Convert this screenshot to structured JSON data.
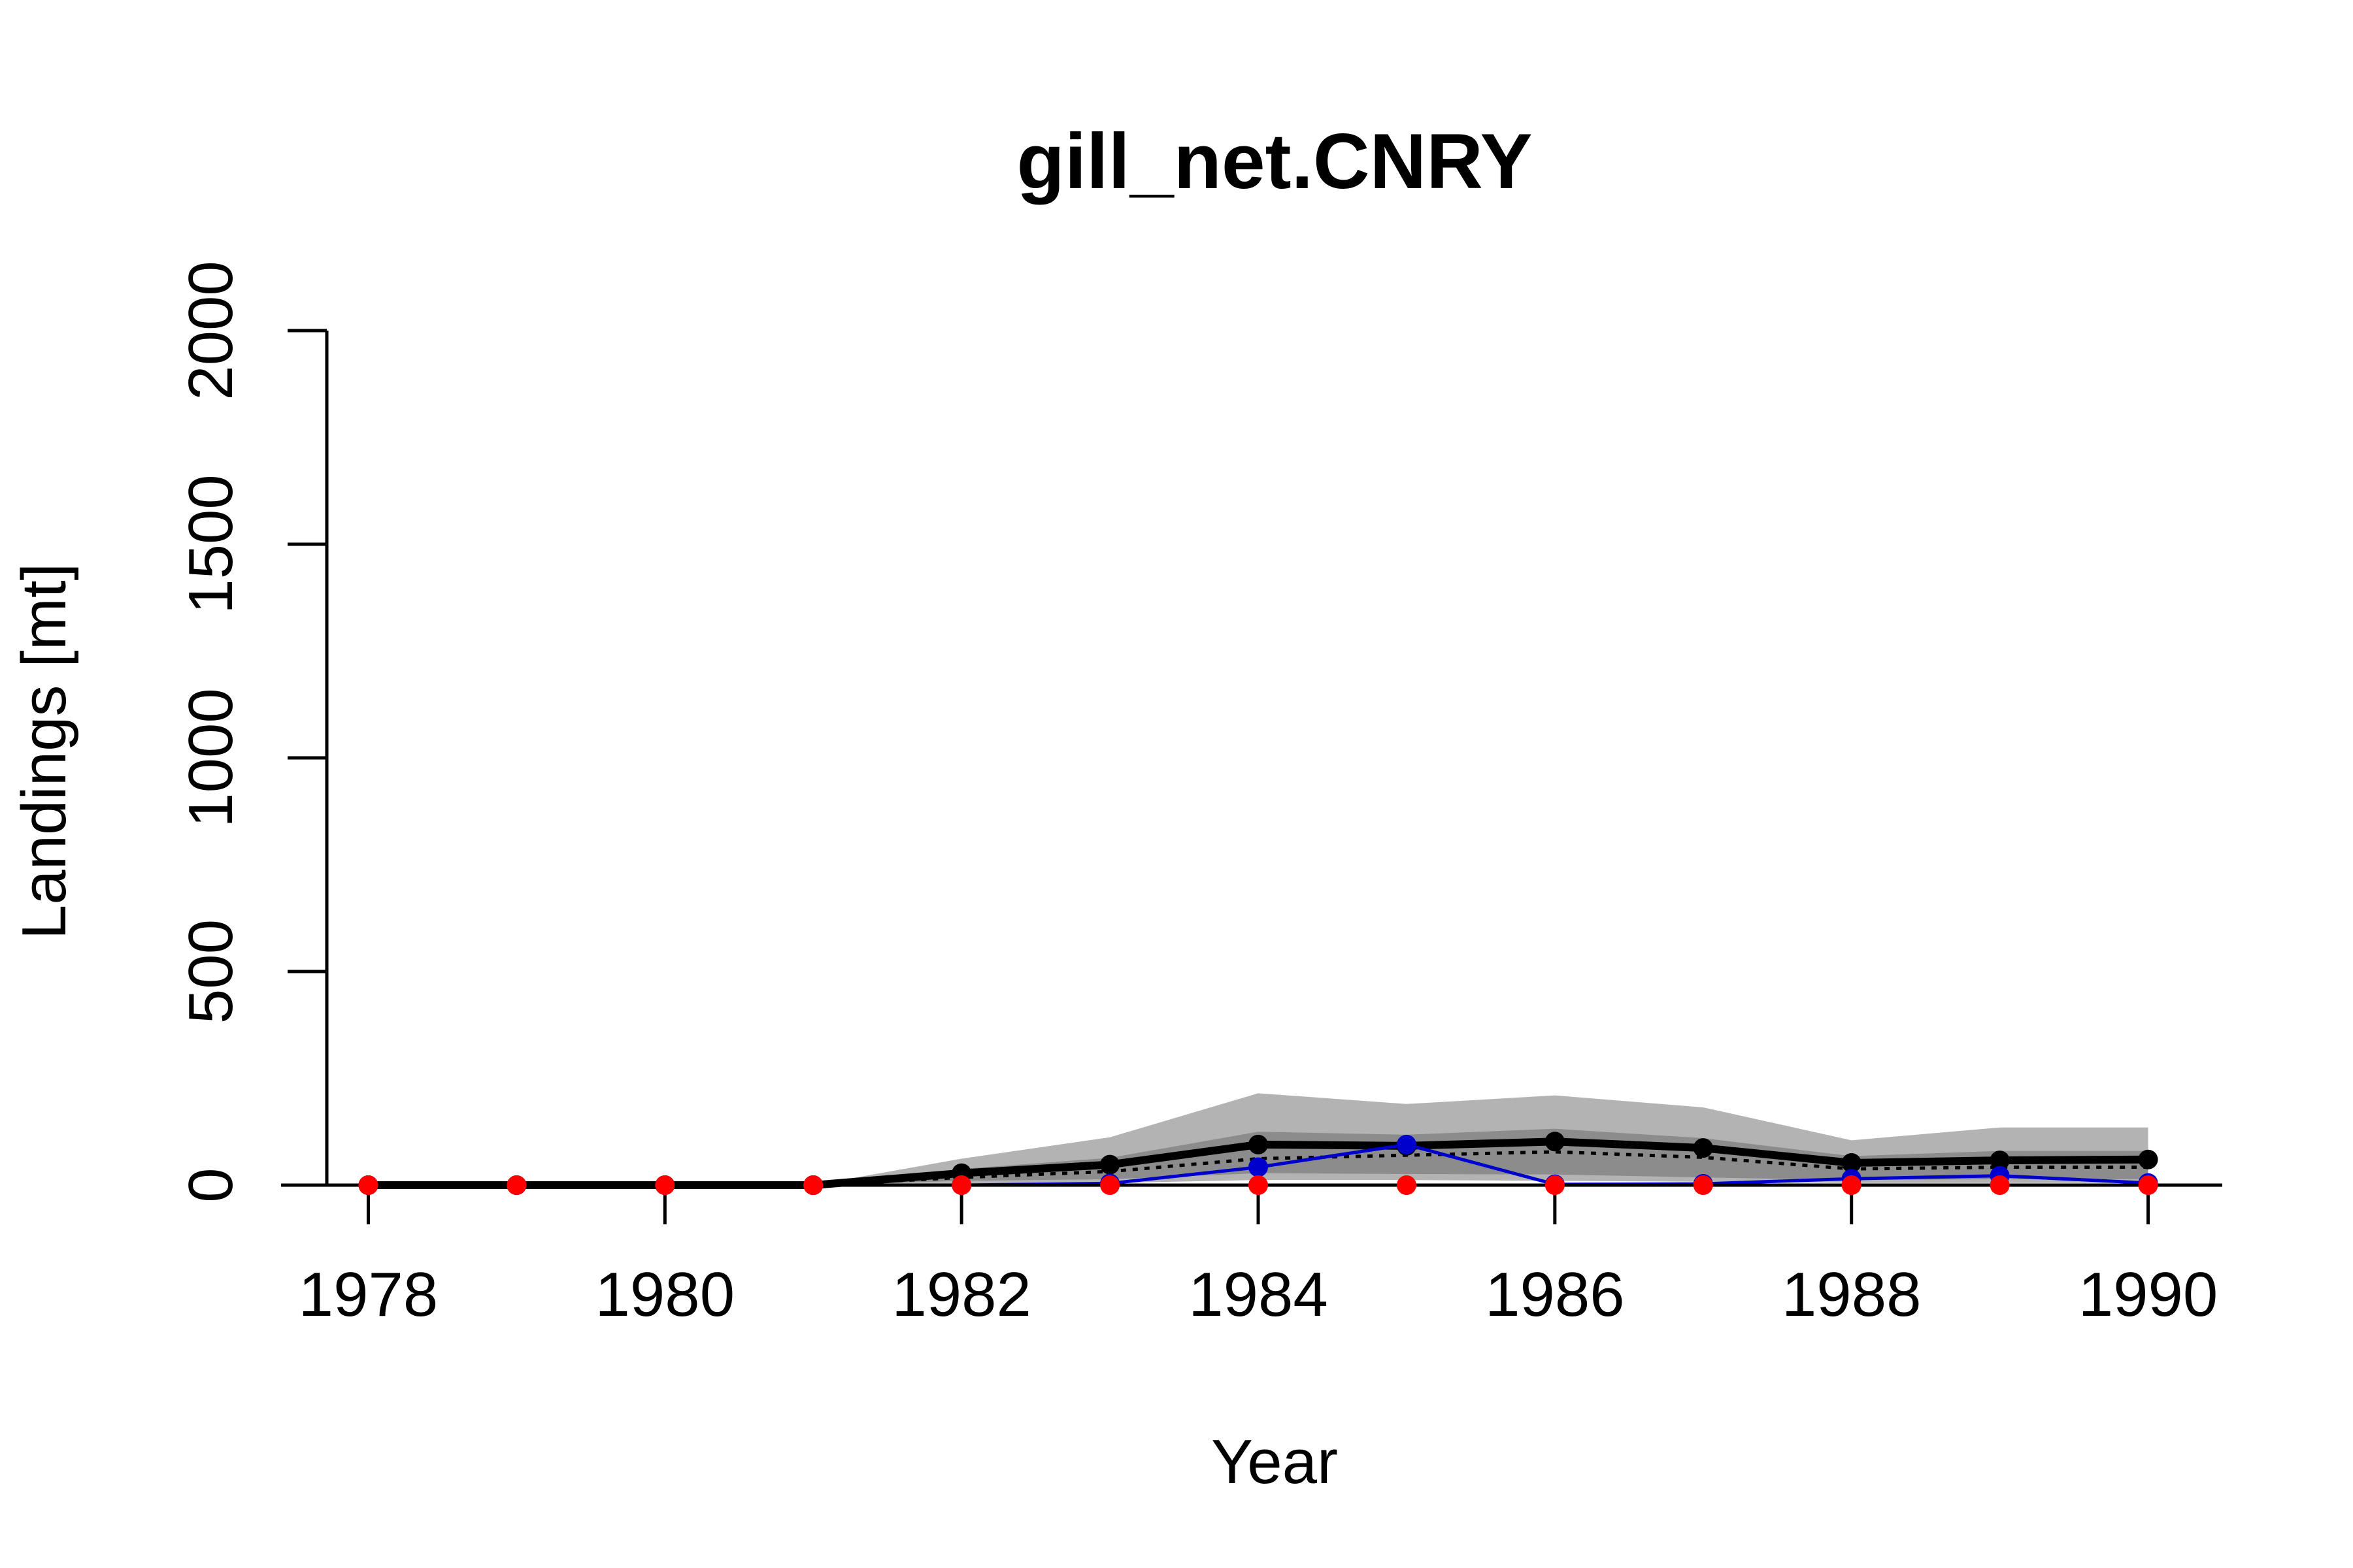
{
  "chart_data": {
    "type": "line",
    "title": "gill_net.CNRY",
    "xlabel": "Year",
    "ylabel": "Landings [mt]",
    "xlim": [
      1977.5,
      1990.5
    ],
    "ylim": [
      0,
      2000
    ],
    "x_ticks": [
      "1978",
      "1980",
      "1982",
      "1984",
      "1986",
      "1988",
      "1990"
    ],
    "y_ticks": [
      "0",
      "500",
      "1000",
      "1500",
      "2000"
    ],
    "x": [
      1978,
      1979,
      1980,
      1981,
      1982,
      1983,
      1984,
      1985,
      1986,
      1987,
      1988,
      1989,
      1990
    ],
    "bands": [
      {
        "color": "#b3b3b3",
        "lower": [
          0,
          0,
          0,
          0,
          3,
          5,
          12,
          12,
          10,
          8,
          5,
          5,
          5
        ],
        "upper": [
          0,
          0,
          0,
          0,
          62,
          112,
          215,
          190,
          210,
          182,
          105,
          135,
          135
        ]
      },
      {
        "color": "#8c8c8c",
        "lower": [
          0,
          0,
          0,
          0,
          10,
          14,
          28,
          26,
          25,
          18,
          12,
          14,
          14
        ],
        "upper": [
          0,
          0,
          0,
          0,
          38,
          64,
          125,
          118,
          132,
          110,
          68,
          80,
          80
        ]
      }
    ],
    "series": [
      {
        "style": "mean",
        "color": "#000000",
        "values": [
          0,
          0,
          0,
          0,
          28,
          48,
          95,
          92,
          102,
          87,
          52,
          58,
          60
        ]
      },
      {
        "style": "median",
        "color": "#000000",
        "values": [
          0,
          0,
          0,
          0,
          18,
          32,
          62,
          70,
          78,
          65,
          38,
          42,
          42
        ]
      },
      {
        "style": "observed",
        "color": "#0000cc",
        "values": [
          0,
          0,
          0,
          0,
          0,
          4,
          42,
          95,
          2,
          3,
          15,
          22,
          5
        ]
      },
      {
        "style": "reference",
        "color": "#ff0000",
        "values": [
          0,
          0,
          0,
          0,
          0,
          0,
          0,
          0,
          0,
          0,
          0,
          0,
          0
        ]
      }
    ]
  }
}
